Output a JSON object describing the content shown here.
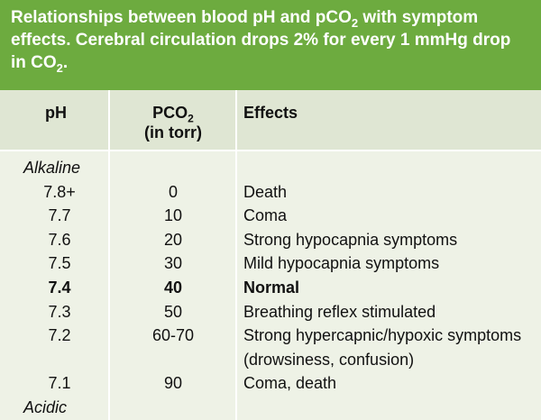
{
  "title": {
    "parts": [
      "Relationships between blood pH and pCO",
      "2",
      " with symptom effects. Cerebral circulation drops 2% for every 1 mmHg drop in CO",
      "2",
      "."
    ]
  },
  "table": {
    "header": {
      "ph": "pH",
      "pco2": [
        "PCO",
        "2",
        "(in torr)"
      ],
      "effect": "Effects"
    },
    "scale_top": "Alkaline",
    "scale_bottom": "Acidic",
    "rows": [
      {
        "ph": "7.8+",
        "pco2": "0",
        "effect": "Death"
      },
      {
        "ph": "7.7",
        "pco2": "10",
        "effect": "Coma"
      },
      {
        "ph": "7.6",
        "pco2": "20",
        "effect": "Strong hypocapnia symptoms"
      },
      {
        "ph": "7.5",
        "pco2": "30",
        "effect": "Mild hypocapnia symptoms"
      },
      {
        "ph": "7.4",
        "pco2": "40",
        "effect": "Normal",
        "bold": true
      },
      {
        "ph": "7.3",
        "pco2": "50",
        "effect": "Breathing reflex stimulated"
      },
      {
        "ph": "7.2",
        "pco2": "60-70",
        "effect": "Strong hypercapnic/hypoxic symptoms (drowsiness, confusion)"
      },
      {
        "ph": "7.1",
        "pco2": "90",
        "effect": "Coma, death"
      }
    ]
  }
}
